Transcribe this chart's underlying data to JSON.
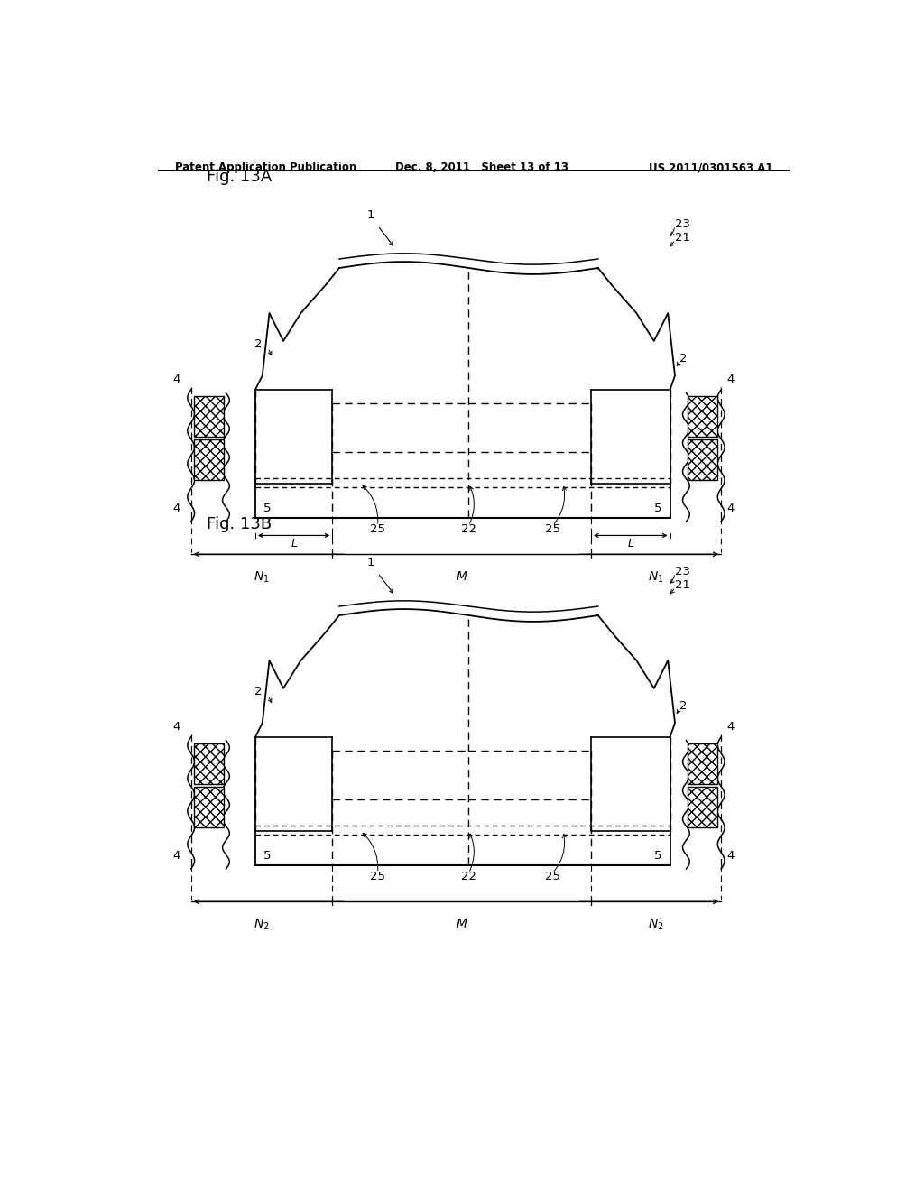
{
  "header_left": "Patent Application Publication",
  "header_mid": "Dec. 8, 2011   Sheet 13 of 13",
  "header_right": "US 2011/0301563 A1",
  "fig_label_A": "Fig. 13A",
  "fig_label_B": "Fig. 13B",
  "bg_color": "#ffffff",
  "line_color": "#000000"
}
